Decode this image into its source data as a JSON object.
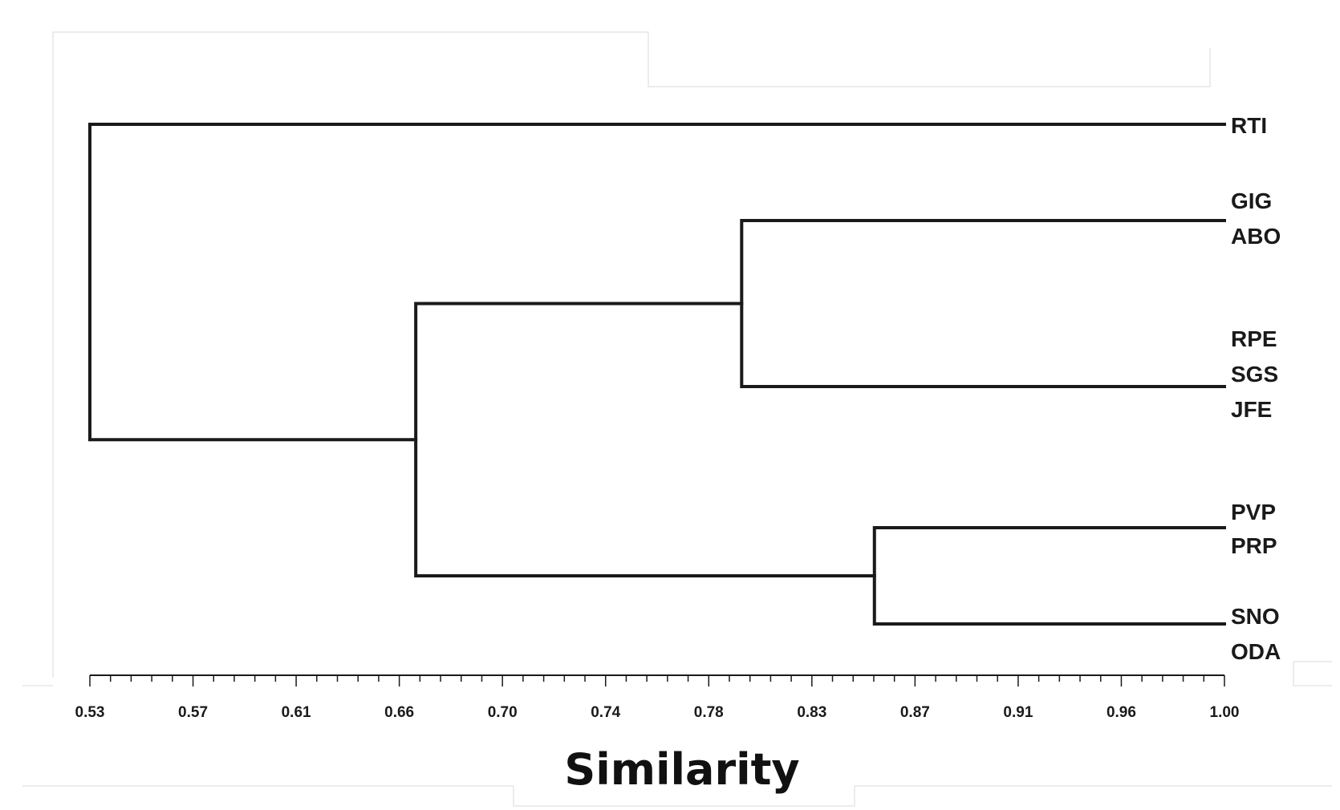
{
  "chart_data": {
    "type": "dendrogram",
    "title": "",
    "xlabel": "Similarity",
    "ylabel": "",
    "xlim": [
      0.53,
      1.0
    ],
    "x_ticks": [
      "0.53",
      "0.57",
      "0.61",
      "0.66",
      "0.70",
      "0.74",
      "0.78",
      "0.83",
      "0.87",
      "0.91",
      "0.96",
      "1.00"
    ],
    "leaves": [
      {
        "id": "RTI",
        "labels": [
          "RTI"
        ]
      },
      {
        "id": "GIG-ABO",
        "labels": [
          "GIG",
          "ABO"
        ]
      },
      {
        "id": "RPE-SGS-JFE",
        "labels": [
          "RPE",
          "SGS",
          "JFE"
        ]
      },
      {
        "id": "PVP-PRP",
        "labels": [
          "PVP",
          "PRP"
        ]
      },
      {
        "id": "SNO-ODA",
        "labels": [
          "SNO",
          "ODA"
        ]
      }
    ],
    "merges": [
      {
        "a": "GIG-ABO",
        "b": "RPE-SGS-JFE",
        "similarity": 0.8,
        "id": "C1"
      },
      {
        "a": "PVP-PRP",
        "b": "SNO-ODA",
        "similarity": 0.855,
        "id": "C2"
      },
      {
        "a": "C1",
        "b": "C2",
        "similarity": 0.665,
        "id": "C3"
      },
      {
        "a": "RTI",
        "b": "C3",
        "similarity": 0.53,
        "id": "C4"
      }
    ]
  }
}
